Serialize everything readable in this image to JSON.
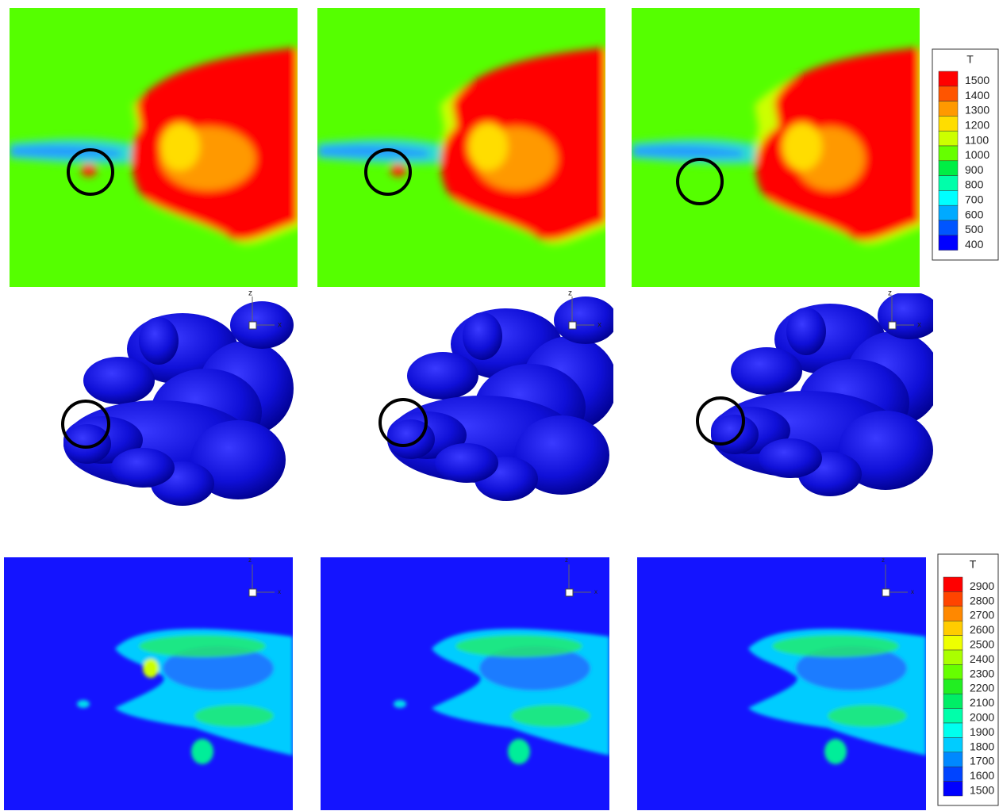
{
  "legends": [
    {
      "title": "T",
      "labels": [
        1500,
        1400,
        1300,
        1200,
        1100,
        1000,
        900,
        800,
        700,
        600,
        500,
        400
      ],
      "colors": [
        "#ff0000",
        "#ff5500",
        "#ff9900",
        "#ffdd00",
        "#ccff00",
        "#66ff00",
        "#00ee44",
        "#00ffaa",
        "#00ffff",
        "#00aaff",
        "#0055ff",
        "#0000ff"
      ]
    },
    {
      "title": "T",
      "labels": [
        2900,
        2800,
        2700,
        2600,
        2500,
        2400,
        2300,
        2200,
        2100,
        2000,
        1900,
        1800,
        1700,
        1600,
        1500
      ],
      "colors": [
        "#ff0000",
        "#ff4400",
        "#ff8800",
        "#ffcc00",
        "#eeff00",
        "#aaff00",
        "#66ff00",
        "#22ee22",
        "#00ee66",
        "#00ffaa",
        "#00ffee",
        "#00ccff",
        "#0088ff",
        "#0044ff",
        "#0000ff"
      ]
    }
  ],
  "triad": {
    "vertical": "z",
    "horizontal": "x"
  }
}
